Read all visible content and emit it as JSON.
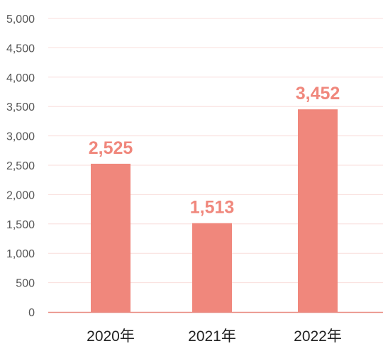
{
  "chart_data": {
    "type": "bar",
    "categories": [
      "2020年",
      "2021年",
      "2022年"
    ],
    "values": [
      2525,
      1513,
      3452
    ],
    "value_labels": [
      "2,525",
      "1,513",
      "3,452"
    ],
    "ylim": [
      0,
      5000
    ],
    "yticks": [
      0,
      500,
      1000,
      1500,
      2000,
      2500,
      3000,
      3500,
      4000,
      4500,
      5000
    ],
    "ytick_labels": [
      "0",
      "500",
      "1,000",
      "1,500",
      "2,000",
      "2,500",
      "3,000",
      "3,500",
      "4,000",
      "4,500",
      "5,000"
    ],
    "grid": true,
    "colors": {
      "bar": "#f0877c",
      "data_label": "#f0877c",
      "grid": "#f9dedb",
      "baseline": "#e98b82"
    }
  }
}
